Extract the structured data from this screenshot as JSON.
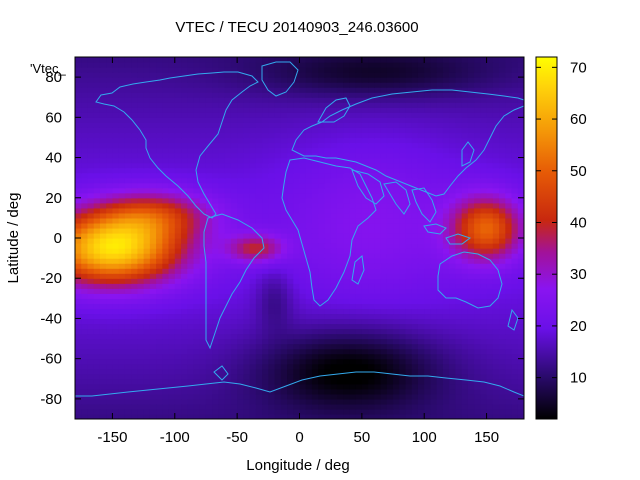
{
  "chart_data": {
    "type": "heatmap",
    "title": "VTEC / TECU 20140903_246.03600",
    "xlabel": "Longitude / deg",
    "ylabel": "Latitude / deg",
    "legend_label": "'Vtec_",
    "xlim": [
      -180,
      180
    ],
    "ylim": [
      -90,
      90
    ],
    "xticks": [
      -150,
      -100,
      -50,
      0,
      50,
      100,
      150
    ],
    "yticks": [
      -80,
      -60,
      -40,
      -20,
      0,
      20,
      40,
      60,
      80
    ],
    "colorbar": {
      "range": [
        2,
        72
      ],
      "ticks": [
        10,
        20,
        30,
        40,
        50,
        60,
        70
      ],
      "palette": "gnuplot pm3d (black-purple-red-orange-yellow)"
    },
    "grid": false,
    "overlay": "coastlines",
    "colors": {
      "coastline": "#33aaee",
      "low": "#000000",
      "mid": "#7a13ff",
      "high": "#ffff00"
    },
    "features": [
      {
        "name": "equatorial anomaly crest (Pacific / Americas)",
        "center_lon": -150,
        "center_lat": -5,
        "peak_vtec": 70
      },
      {
        "name": "tail over South Atlantic",
        "center_lon": -35,
        "center_lat": -5,
        "peak_vtec": 40
      },
      {
        "name": "western Pacific enhancement",
        "center_lon": 150,
        "center_lat": 5,
        "peak_vtec": 52
      },
      {
        "name": "polar / night minimum",
        "center_lon": 40,
        "center_lat": -65,
        "peak_vtec": 5
      }
    ]
  }
}
